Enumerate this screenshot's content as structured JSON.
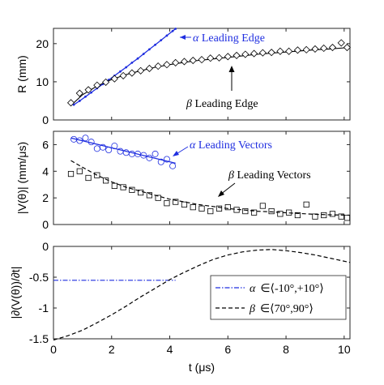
{
  "chart_data": [
    {
      "type": "line",
      "ylabel": "R (mm)",
      "xlim": [
        0,
        10.2
      ],
      "ylim": [
        0,
        24
      ],
      "xticks": [
        0,
        2,
        4,
        6,
        8,
        10
      ],
      "yticks": [
        0,
        10,
        20
      ],
      "series": [
        {
          "name": "α Leading Edge",
          "color": "#1f2ee0",
          "style": "solid-dotted",
          "x": [
            0.7,
            0.9,
            1.1,
            1.3,
            1.5,
            1.7,
            1.9,
            2.1,
            2.3,
            2.5,
            2.7,
            2.9,
            3.1,
            3.3,
            3.5,
            3.7,
            3.9,
            4.1,
            4.2
          ],
          "y": [
            4.0,
            5.0,
            6.1,
            7.2,
            8.3,
            9.4,
            10.5,
            11.6,
            12.7,
            13.8,
            15.0,
            16.1,
            17.3,
            18.5,
            19.7,
            20.9,
            22.1,
            23.3,
            23.9
          ]
        },
        {
          "name": "β Leading Edge",
          "color": "#000000",
          "marker": "diamond",
          "x": [
            0.6,
            0.9,
            1.2,
            1.5,
            1.8,
            2.1,
            2.4,
            2.7,
            3.0,
            3.3,
            3.6,
            3.9,
            4.2,
            4.5,
            4.8,
            5.1,
            5.4,
            5.7,
            6.0,
            6.3,
            6.6,
            6.9,
            7.2,
            7.5,
            7.8,
            8.1,
            8.4,
            8.7,
            9.0,
            9.3,
            9.6,
            9.9,
            10.1
          ],
          "y": [
            4.5,
            7.0,
            7.9,
            9.1,
            9.9,
            10.8,
            11.6,
            12.3,
            12.9,
            13.5,
            14.1,
            14.5,
            15.0,
            15.3,
            15.6,
            15.8,
            16.2,
            16.3,
            16.6,
            16.9,
            17.2,
            17.4,
            17.6,
            17.7,
            18.0,
            18.0,
            18.3,
            18.4,
            18.6,
            18.8,
            19.0,
            20.2,
            19.0
          ]
        }
      ],
      "fit_beta_edge": {
        "color": "#000000",
        "x": [
          0.6,
          1.0,
          1.5,
          2.0,
          2.5,
          3.0,
          3.5,
          4.0,
          4.5,
          5.0,
          5.5,
          6.0,
          6.5,
          7.0,
          7.5,
          8.0,
          8.5,
          9.0,
          9.5,
          10.2
        ],
        "y": [
          3.8,
          6.6,
          8.9,
          10.6,
          11.9,
          12.9,
          13.8,
          14.5,
          15.1,
          15.6,
          16.0,
          16.4,
          16.8,
          17.2,
          17.5,
          17.8,
          18.1,
          18.4,
          18.6,
          19.0
        ]
      },
      "annotations": [
        {
          "label": "α Leading Edge",
          "greek": "α",
          "text": " Leading Edge",
          "color": "#1f2ee0"
        },
        {
          "label": "β Leading Edge",
          "greek": "β",
          "text": " Leading Edge",
          "color": "#000000"
        }
      ]
    },
    {
      "type": "scatter",
      "ylabel": "|V(θ)| (mm/μs)",
      "xlim": [
        0,
        10.2
      ],
      "ylim": [
        0,
        7
      ],
      "xticks": [
        0,
        2,
        4,
        6,
        8,
        10
      ],
      "yticks": [
        0,
        2,
        4,
        6
      ],
      "series": [
        {
          "name": "α Leading Vectors",
          "color": "#1f2ee0",
          "marker": "circle",
          "x": [
            0.7,
            0.9,
            1.1,
            1.3,
            1.5,
            1.7,
            1.9,
            2.1,
            2.3,
            2.5,
            2.7,
            2.9,
            3.1,
            3.3,
            3.5,
            3.7,
            3.9,
            4.1
          ],
          "y": [
            6.4,
            6.3,
            6.5,
            6.2,
            5.7,
            5.8,
            5.6,
            5.9,
            5.5,
            5.4,
            5.3,
            5.3,
            5.2,
            5.0,
            5.3,
            4.7,
            4.9,
            4.4
          ]
        },
        {
          "name": "β Leading Vectors",
          "color": "#000000",
          "marker": "square",
          "x": [
            0.6,
            0.9,
            1.2,
            1.5,
            1.8,
            2.1,
            2.4,
            2.7,
            3.0,
            3.3,
            3.6,
            3.9,
            4.2,
            4.5,
            4.8,
            5.1,
            5.4,
            5.7,
            6.0,
            6.3,
            6.6,
            6.9,
            7.2,
            7.5,
            7.8,
            8.1,
            8.4,
            8.7,
            9.0,
            9.3,
            9.6,
            9.9,
            10.1
          ],
          "y": [
            3.8,
            4.0,
            3.5,
            3.7,
            3.3,
            2.9,
            2.8,
            2.6,
            2.4,
            2.2,
            2.0,
            1.6,
            1.7,
            1.5,
            1.3,
            1.2,
            1.0,
            1.2,
            1.3,
            1.1,
            1.0,
            0.9,
            1.4,
            1.0,
            0.8,
            0.9,
            0.7,
            1.5,
            0.6,
            0.7,
            0.8,
            0.6,
            0.5
          ]
        }
      ],
      "fit_alpha_vectors": {
        "color": "#1f2ee0",
        "x": [
          0.6,
          4.2
        ],
        "y": [
          6.5,
          4.6
        ]
      },
      "fit_beta_vectors": {
        "color": "#000000",
        "style": "dashed",
        "x": [
          0.6,
          1.0,
          1.5,
          2.0,
          2.5,
          3.0,
          3.5,
          4.0,
          4.5,
          5.0,
          5.5,
          6.0,
          6.5,
          7.0,
          7.5,
          8.0,
          8.5,
          9.0,
          9.5,
          10.2
        ],
        "y": [
          4.8,
          4.3,
          3.7,
          3.2,
          2.8,
          2.5,
          2.2,
          1.9,
          1.7,
          1.5,
          1.35,
          1.2,
          1.1,
          1.0,
          0.95,
          0.88,
          0.82,
          0.77,
          0.73,
          0.7
        ]
      },
      "annotations": [
        {
          "label": "α Leading Vectors",
          "greek": "α",
          "text": " Leading Vectors",
          "color": "#1f2ee0"
        },
        {
          "label": "β Leading Vectors",
          "greek": "β",
          "text": " Leading Vectors",
          "color": "#000000"
        }
      ]
    },
    {
      "type": "line",
      "ylabel": "|∂(V(θ))/∂t|",
      "xlabel": "t (μs)",
      "xlim": [
        0,
        10.2
      ],
      "ylim": [
        -1.5,
        0
      ],
      "xticks": [
        0,
        2,
        4,
        6,
        8,
        10
      ],
      "yticks": [
        0,
        -0.5,
        -1,
        -1.5
      ],
      "ytick_labels": [
        "0",
        "-0.5",
        "-1",
        "-1.5"
      ],
      "series": [
        {
          "name": "α ∈⟨-10°,+10°⟩",
          "legend_greek": "α",
          "legend_text": "∈⟨-10°,+10°⟩",
          "color": "#1f2ee0",
          "style": "dashdot",
          "x": [
            0,
            4.2
          ],
          "y": [
            -0.55,
            -0.55
          ]
        },
        {
          "name": "β ∈⟨70°,90°⟩",
          "legend_greek": "β",
          "legend_text": "∈⟨70°,90°⟩",
          "color": "#000000",
          "style": "dashed",
          "x": [
            0,
            0.5,
            1.0,
            1.5,
            2.0,
            2.5,
            3.0,
            3.5,
            4.0,
            4.5,
            5.0,
            5.5,
            6.0,
            6.5,
            7.0,
            7.5,
            8.0,
            8.5,
            9.0,
            9.5,
            10.2
          ],
          "y": [
            -1.52,
            -1.45,
            -1.36,
            -1.24,
            -1.11,
            -0.97,
            -0.82,
            -0.68,
            -0.54,
            -0.42,
            -0.31,
            -0.21,
            -0.14,
            -0.09,
            -0.06,
            -0.05,
            -0.07,
            -0.1,
            -0.14,
            -0.19,
            -0.26
          ]
        }
      ],
      "legend_position": "center-right"
    }
  ]
}
